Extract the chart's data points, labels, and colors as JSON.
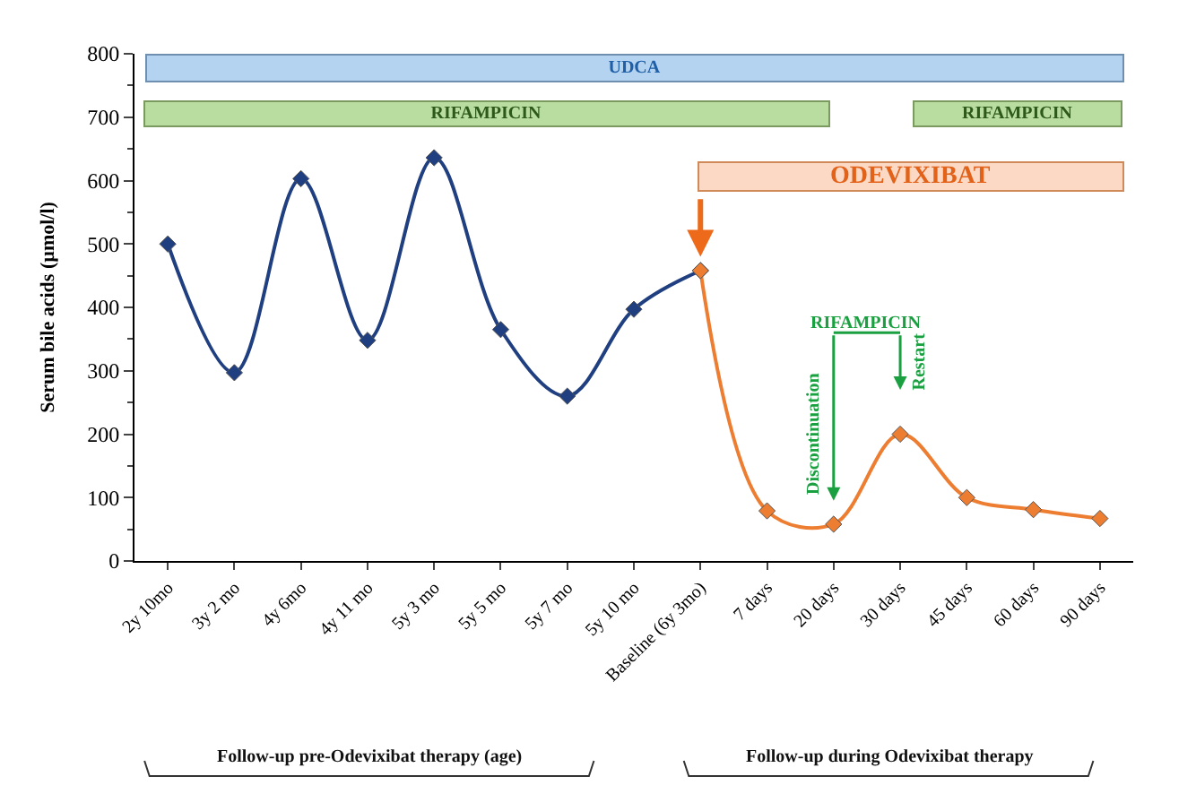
{
  "chart_data": {
    "type": "line",
    "ylabel": "Serum bile acids (µmol/l)",
    "categories": [
      "2y 10mo",
      "3y 2 mo",
      "4y 6mo",
      "4y 11 mo",
      "5y 3 mo",
      "5y 5 mo",
      "5y 7 mo",
      "5y 10 mo",
      "Baseline (6y 3mo)",
      "7 days",
      "20 days",
      "30 days",
      "45 days",
      "60 days",
      "90 days"
    ],
    "series": [
      {
        "color": "#1f3f80",
        "values": [
          500,
          297,
          603,
          348,
          636,
          365,
          260,
          397,
          458,
          null,
          null,
          null,
          null,
          null,
          null
        ]
      },
      {
        "color": "#ed7d31",
        "values": [
          null,
          null,
          null,
          null,
          null,
          null,
          null,
          null,
          458,
          79,
          58,
          200,
          100,
          81,
          67
        ]
      }
    ],
    "ylim": [
      0,
      800
    ],
    "yticks": [
      0,
      100,
      200,
      300,
      400,
      500,
      600,
      700,
      800
    ],
    "marker": "diamond",
    "line_style": "solid",
    "annotations": [
      "UDCA",
      "RIFAMPICIN",
      "RIFAMPICIN",
      "ODEVIXIBAT",
      "RIFAMPICIN",
      "Discontinuation",
      "Restart",
      "Follow-up pre-Odevixibat therapy (age)",
      "Follow-up during Odevixibat therapy"
    ]
  }
}
